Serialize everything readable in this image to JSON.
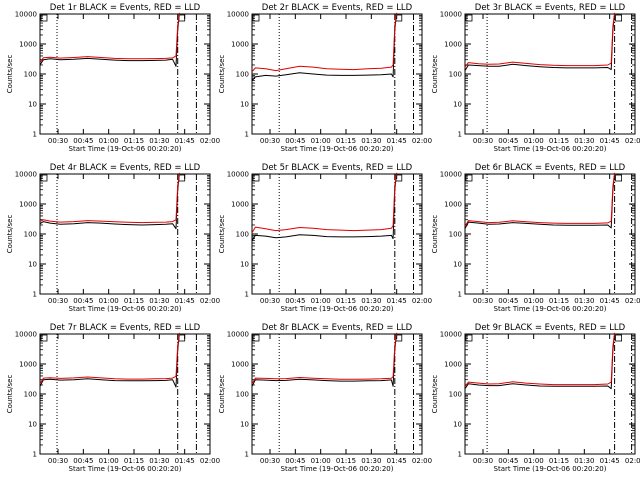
{
  "chart_data": [
    {
      "type": "line",
      "title": "Det 1r BLACK = Events, RED = LLD",
      "xlabel": "Start Time (19-Oct-06 00:20:20)",
      "ylabel": "Counts/sec",
      "yscale": "log",
      "ylim": [
        1,
        10000
      ],
      "xlim": [
        0,
        100
      ],
      "x_ticks": [
        "00:30",
        "00:45",
        "01:00",
        "01:15",
        "01:30",
        "01:45",
        "02:00"
      ],
      "y_ticks": [
        "1",
        "10",
        "100",
        "1000",
        "10000"
      ],
      "vlines": [
        {
          "x": 10,
          "style": "dotted"
        },
        {
          "x": 81,
          "style": "dash-dot"
        },
        {
          "x": 92,
          "style": "dash-dot"
        }
      ],
      "series": [
        {
          "color": "#000000",
          "x": [
            0,
            2,
            6,
            12,
            20,
            28,
            36,
            44,
            52,
            60,
            68,
            74,
            78,
            80,
            81,
            82
          ],
          "y": [
            200,
            300,
            320,
            300,
            310,
            330,
            310,
            290,
            280,
            280,
            285,
            290,
            310,
            180,
            3000,
            10000
          ]
        },
        {
          "color": "#e00000",
          "x": [
            0,
            2,
            6,
            12,
            20,
            28,
            36,
            44,
            52,
            60,
            68,
            74,
            78,
            80,
            81,
            82
          ],
          "y": [
            240,
            350,
            360,
            340,
            355,
            380,
            355,
            330,
            320,
            320,
            325,
            330,
            345,
            400,
            4000,
            11000
          ]
        }
      ]
    },
    {
      "type": "line",
      "title": "Det 2r BLACK = Events, RED = LLD",
      "xlabel": "Start Time (19-Oct-06 00:20:20)",
      "ylabel": "Counts/sec",
      "yscale": "log",
      "ylim": [
        1,
        10000
      ],
      "xlim": [
        0,
        100
      ],
      "x_ticks": [
        "00:30",
        "00:45",
        "01:00",
        "01:15",
        "01:30",
        "01:45",
        "02:00"
      ],
      "y_ticks": [
        "1",
        "10",
        "100",
        "1000",
        "10000"
      ],
      "vlines": [
        {
          "x": 16,
          "style": "dotted"
        },
        {
          "x": 84,
          "style": "dash-dot"
        },
        {
          "x": 95,
          "style": "dash-dot"
        }
      ],
      "series": [
        {
          "color": "#000000",
          "x": [
            0,
            2,
            8,
            14,
            20,
            28,
            36,
            44,
            52,
            60,
            68,
            76,
            82,
            83,
            84,
            85
          ],
          "y": [
            60,
            80,
            90,
            85,
            95,
            110,
            100,
            92,
            90,
            90,
            92,
            95,
            100,
            80,
            3000,
            10000
          ]
        },
        {
          "color": "#e00000",
          "x": [
            0,
            2,
            8,
            14,
            20,
            28,
            36,
            44,
            52,
            60,
            68,
            76,
            82,
            83,
            84,
            85
          ],
          "y": [
            120,
            160,
            150,
            130,
            150,
            180,
            170,
            150,
            145,
            140,
            150,
            155,
            170,
            200,
            4000,
            11000
          ]
        }
      ]
    },
    {
      "type": "line",
      "title": "Det 3r BLACK = Events, RED = LLD",
      "xlabel": "Start Time (19-Oct-06 00:20:20)",
      "ylabel": "Counts/sec",
      "yscale": "log",
      "ylim": [
        1,
        10000
      ],
      "xlim": [
        0,
        100
      ],
      "x_ticks": [
        "00:30",
        "00:45",
        "01:00",
        "01:15",
        "01:30",
        "01:45",
        "02:00"
      ],
      "y_ticks": [
        "1",
        "10",
        "100",
        "1000",
        "10000"
      ],
      "vlines": [
        {
          "x": 13,
          "style": "dotted"
        },
        {
          "x": 88,
          "style": "dash-dot"
        },
        {
          "x": 98,
          "style": "dash-dot"
        }
      ],
      "series": [
        {
          "color": "#000000",
          "x": [
            0,
            2,
            8,
            14,
            20,
            28,
            36,
            44,
            52,
            60,
            68,
            76,
            84,
            86,
            87,
            88
          ],
          "y": [
            130,
            200,
            190,
            180,
            180,
            210,
            190,
            175,
            165,
            160,
            160,
            160,
            165,
            140,
            3000,
            10000
          ]
        },
        {
          "color": "#e00000",
          "x": [
            0,
            2,
            8,
            14,
            20,
            28,
            36,
            44,
            52,
            60,
            68,
            76,
            84,
            86,
            87,
            88
          ],
          "y": [
            170,
            240,
            220,
            210,
            215,
            250,
            225,
            205,
            195,
            190,
            190,
            190,
            200,
            230,
            4000,
            11000
          ]
        }
      ]
    },
    {
      "type": "line",
      "title": "Det 4r BLACK = Events, RED = LLD",
      "xlabel": "Start Time (19-Oct-06 00:20:20)",
      "ylabel": "Counts/sec",
      "yscale": "log",
      "ylim": [
        1,
        10000
      ],
      "xlim": [
        0,
        100
      ],
      "x_ticks": [
        "00:30",
        "00:45",
        "01:00",
        "01:15",
        "01:30",
        "01:45",
        "02:00"
      ],
      "y_ticks": [
        "1",
        "10",
        "100",
        "1000",
        "10000"
      ],
      "vlines": [
        {
          "x": 10,
          "style": "dotted"
        },
        {
          "x": 81,
          "style": "dash-dot"
        },
        {
          "x": 92,
          "style": "dash-dot"
        }
      ],
      "series": [
        {
          "color": "#000000",
          "x": [
            0,
            2,
            6,
            12,
            20,
            28,
            36,
            44,
            52,
            60,
            68,
            74,
            78,
            80,
            81,
            82
          ],
          "y": [
            220,
            260,
            230,
            210,
            220,
            240,
            230,
            215,
            205,
            200,
            205,
            210,
            220,
            150,
            3000,
            10000
          ]
        },
        {
          "color": "#e00000",
          "x": [
            0,
            2,
            6,
            12,
            20,
            28,
            36,
            44,
            52,
            60,
            68,
            74,
            78,
            80,
            81,
            82
          ],
          "y": [
            260,
            300,
            270,
            250,
            260,
            280,
            270,
            255,
            245,
            240,
            245,
            250,
            260,
            300,
            4000,
            11000
          ]
        }
      ]
    },
    {
      "type": "line",
      "title": "Det 5r BLACK = Events, RED = LLD",
      "xlabel": "Start Time (19-Oct-06 00:20:20)",
      "ylabel": "Counts/sec",
      "yscale": "log",
      "ylim": [
        1,
        10000
      ],
      "xlim": [
        0,
        100
      ],
      "x_ticks": [
        "00:30",
        "00:45",
        "01:00",
        "01:15",
        "01:30",
        "01:45",
        "02:00"
      ],
      "y_ticks": [
        "1",
        "10",
        "100",
        "1000",
        "10000"
      ],
      "vlines": [
        {
          "x": 16,
          "style": "dotted"
        },
        {
          "x": 84,
          "style": "dash-dot"
        },
        {
          "x": 95,
          "style": "dash-dot"
        }
      ],
      "series": [
        {
          "color": "#000000",
          "x": [
            0,
            2,
            8,
            14,
            20,
            28,
            36,
            44,
            52,
            60,
            68,
            76,
            82,
            83,
            84,
            85
          ],
          "y": [
            60,
            90,
            85,
            75,
            80,
            95,
            90,
            82,
            80,
            80,
            82,
            85,
            90,
            70,
            3000,
            10000
          ]
        },
        {
          "color": "#e00000",
          "x": [
            0,
            2,
            8,
            14,
            20,
            28,
            36,
            44,
            52,
            60,
            68,
            76,
            82,
            83,
            84,
            85
          ],
          "y": [
            110,
            170,
            150,
            130,
            140,
            165,
            155,
            140,
            135,
            130,
            135,
            140,
            155,
            190,
            4000,
            11000
          ]
        }
      ]
    },
    {
      "type": "line",
      "title": "Det 6r BLACK = Events, RED = LLD",
      "xlabel": "Start Time (19-Oct-06 00:20:20)",
      "ylabel": "Counts/sec",
      "yscale": "log",
      "ylim": [
        1,
        10000
      ],
      "xlim": [
        0,
        100
      ],
      "x_ticks": [
        "00:30",
        "00:45",
        "01:00",
        "01:15",
        "01:30",
        "01:45",
        "02:00"
      ],
      "y_ticks": [
        "1",
        "10",
        "100",
        "1000",
        "10000"
      ],
      "vlines": [
        {
          "x": 13,
          "style": "dotted"
        },
        {
          "x": 88,
          "style": "dash-dot"
        },
        {
          "x": 98,
          "style": "dash-dot"
        }
      ],
      "series": [
        {
          "color": "#000000",
          "x": [
            0,
            2,
            8,
            14,
            20,
            28,
            36,
            44,
            52,
            60,
            68,
            76,
            84,
            86,
            87,
            88
          ],
          "y": [
            150,
            250,
            230,
            210,
            215,
            240,
            225,
            210,
            200,
            195,
            195,
            195,
            200,
            160,
            3000,
            10000
          ]
        },
        {
          "color": "#e00000",
          "x": [
            0,
            2,
            8,
            14,
            20,
            28,
            36,
            44,
            52,
            60,
            68,
            76,
            84,
            86,
            87,
            88
          ],
          "y": [
            180,
            280,
            260,
            240,
            245,
            275,
            255,
            240,
            230,
            225,
            225,
            225,
            235,
            270,
            4000,
            11000
          ]
        }
      ]
    },
    {
      "type": "line",
      "title": "Det 7r BLACK = Events, RED = LLD",
      "xlabel": "Start Time (19-Oct-06 00:20:20)",
      "ylabel": "Counts/sec",
      "yscale": "log",
      "ylim": [
        1,
        10000
      ],
      "xlim": [
        0,
        100
      ],
      "x_ticks": [
        "00:30",
        "00:45",
        "01:00",
        "01:15",
        "01:30",
        "01:45",
        "02:00"
      ],
      "y_ticks": [
        "1",
        "10",
        "100",
        "1000",
        "10000"
      ],
      "vlines": [
        {
          "x": 10,
          "style": "dotted"
        },
        {
          "x": 81,
          "style": "dash-dot"
        },
        {
          "x": 92,
          "style": "dash-dot"
        }
      ],
      "series": [
        {
          "color": "#000000",
          "x": [
            0,
            2,
            6,
            12,
            20,
            28,
            36,
            44,
            52,
            60,
            68,
            74,
            78,
            80,
            81,
            82
          ],
          "y": [
            180,
            300,
            310,
            290,
            300,
            320,
            300,
            280,
            275,
            275,
            280,
            285,
            300,
            170,
            3000,
            10000
          ]
        },
        {
          "color": "#e00000",
          "x": [
            0,
            2,
            6,
            12,
            20,
            28,
            36,
            44,
            52,
            60,
            68,
            74,
            78,
            80,
            81,
            82
          ],
          "y": [
            220,
            340,
            350,
            330,
            345,
            370,
            345,
            320,
            315,
            315,
            320,
            325,
            340,
            390,
            4000,
            11000
          ]
        }
      ]
    },
    {
      "type": "line",
      "title": "Det 8r BLACK = Events, RED = LLD",
      "xlabel": "Start Time (19-Oct-06 00:20:20)",
      "ylabel": "Counts/sec",
      "yscale": "log",
      "ylim": [
        1,
        10000
      ],
      "xlim": [
        0,
        100
      ],
      "x_ticks": [
        "00:30",
        "00:45",
        "01:00",
        "01:15",
        "01:30",
        "01:45",
        "02:00"
      ],
      "y_ticks": [
        "1",
        "10",
        "100",
        "1000",
        "10000"
      ],
      "vlines": [
        {
          "x": 16,
          "style": "dotted"
        },
        {
          "x": 84,
          "style": "dash-dot"
        },
        {
          "x": 95,
          "style": "dash-dot"
        }
      ],
      "series": [
        {
          "color": "#000000",
          "x": [
            0,
            2,
            8,
            14,
            20,
            28,
            36,
            44,
            52,
            60,
            68,
            76,
            82,
            83,
            84,
            85
          ],
          "y": [
            180,
            300,
            290,
            280,
            285,
            310,
            295,
            280,
            270,
            270,
            275,
            280,
            295,
            180,
            3000,
            10000
          ]
        },
        {
          "color": "#e00000",
          "x": [
            0,
            2,
            8,
            14,
            20,
            28,
            36,
            44,
            52,
            60,
            68,
            76,
            82,
            83,
            84,
            85
          ],
          "y": [
            220,
            340,
            330,
            320,
            325,
            355,
            335,
            320,
            310,
            310,
            315,
            320,
            335,
            380,
            4000,
            11000
          ]
        }
      ]
    },
    {
      "type": "line",
      "title": "Det 9r BLACK = Events, RED = LLD",
      "xlabel": "Start Time (19-Oct-06 00:20:20)",
      "ylabel": "Counts/sec",
      "yscale": "log",
      "ylim": [
        1,
        10000
      ],
      "xlim": [
        0,
        100
      ],
      "x_ticks": [
        "00:30",
        "00:45",
        "01:00",
        "01:15",
        "01:30",
        "01:45",
        "02:00"
      ],
      "y_ticks": [
        "1",
        "10",
        "100",
        "1000",
        "10000"
      ],
      "vlines": [
        {
          "x": 13,
          "style": "dotted"
        },
        {
          "x": 88,
          "style": "dash-dot"
        },
        {
          "x": 98,
          "style": "dash-dot"
        }
      ],
      "series": [
        {
          "color": "#000000",
          "x": [
            0,
            2,
            8,
            14,
            20,
            28,
            36,
            44,
            52,
            60,
            68,
            76,
            84,
            86,
            87,
            88
          ],
          "y": [
            150,
            220,
            200,
            190,
            190,
            220,
            200,
            185,
            180,
            180,
            180,
            180,
            185,
            150,
            3000,
            10000
          ]
        },
        {
          "color": "#e00000",
          "x": [
            0,
            2,
            8,
            14,
            20,
            28,
            36,
            44,
            52,
            60,
            68,
            76,
            84,
            86,
            87,
            88
          ],
          "y": [
            180,
            250,
            230,
            215,
            220,
            255,
            230,
            215,
            205,
            205,
            205,
            205,
            215,
            250,
            4000,
            11000
          ]
        }
      ]
    }
  ]
}
